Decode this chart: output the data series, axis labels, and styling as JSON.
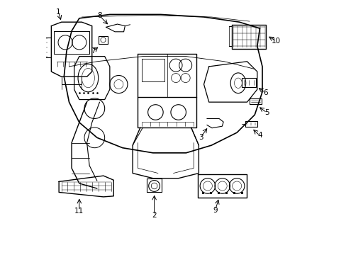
{
  "bg_color": "#ffffff",
  "line_color": "#000000",
  "lw": 0.8,
  "label_fontsize": 7.5
}
